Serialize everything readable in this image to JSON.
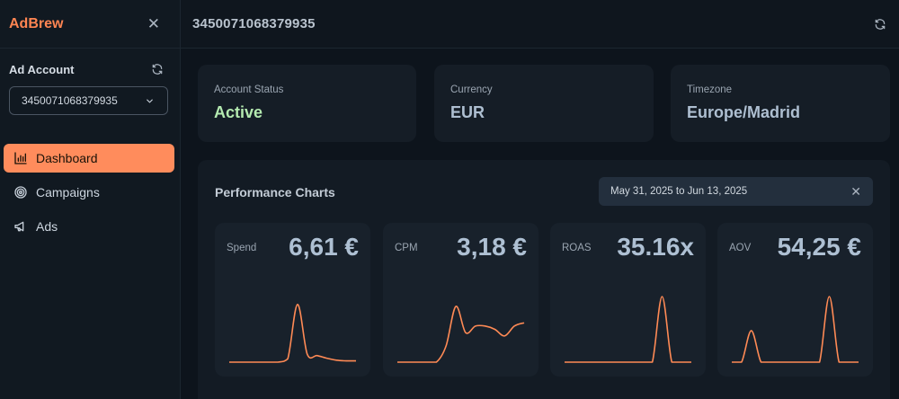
{
  "sidebar": {
    "brand": "AdBrew",
    "ad_account_label": "Ad Account",
    "ad_account_value": "3450071068379935",
    "nav": [
      {
        "label": "Dashboard",
        "icon": "bar-chart-icon",
        "active": true
      },
      {
        "label": "Campaigns",
        "icon": "target-icon",
        "active": false
      },
      {
        "label": "Ads",
        "icon": "megaphone-icon",
        "active": false
      }
    ]
  },
  "header": {
    "title": "3450071068379935"
  },
  "info": {
    "status": {
      "label": "Account Status",
      "value": "Active"
    },
    "currency": {
      "label": "Currency",
      "value": "EUR"
    },
    "timezone": {
      "label": "Timezone",
      "value": "Europe/Madrid"
    }
  },
  "performance": {
    "title": "Performance Charts",
    "date_range": "May 31, 2025 to Jun 13, 2025",
    "metrics": [
      {
        "label": "Spend",
        "value": "6,61 €"
      },
      {
        "label": "CPM",
        "value": "3,18 €"
      },
      {
        "label": "ROAS",
        "value": "35.16x"
      },
      {
        "label": "AOV",
        "value": "54,25 €"
      }
    ]
  },
  "chart_data": [
    {
      "type": "line",
      "series": [
        {
          "values": [
            0,
            0,
            0,
            0,
            0,
            0,
            0.05,
            0.88,
            0.12,
            0.1,
            0.06,
            0.03,
            0.02,
            0.02
          ]
        }
      ]
    },
    {
      "type": "line",
      "series": [
        {
          "values": [
            0,
            0,
            0,
            0,
            0,
            0.25,
            0.85,
            0.45,
            0.55,
            0.55,
            0.5,
            0.4,
            0.55,
            0.6
          ]
        }
      ]
    },
    {
      "type": "line",
      "series": [
        {
          "values": [
            0,
            0,
            0,
            0,
            0,
            0,
            0,
            0,
            0,
            0,
            1,
            0,
            0,
            0
          ]
        }
      ]
    },
    {
      "type": "line",
      "series": [
        {
          "values": [
            0,
            0,
            0.48,
            0,
            0,
            0,
            0,
            0,
            0,
            0,
            1,
            0,
            0,
            0
          ]
        }
      ]
    }
  ],
  "colors": {
    "accent": "#ff8c5c",
    "line": "#ff8a55"
  }
}
